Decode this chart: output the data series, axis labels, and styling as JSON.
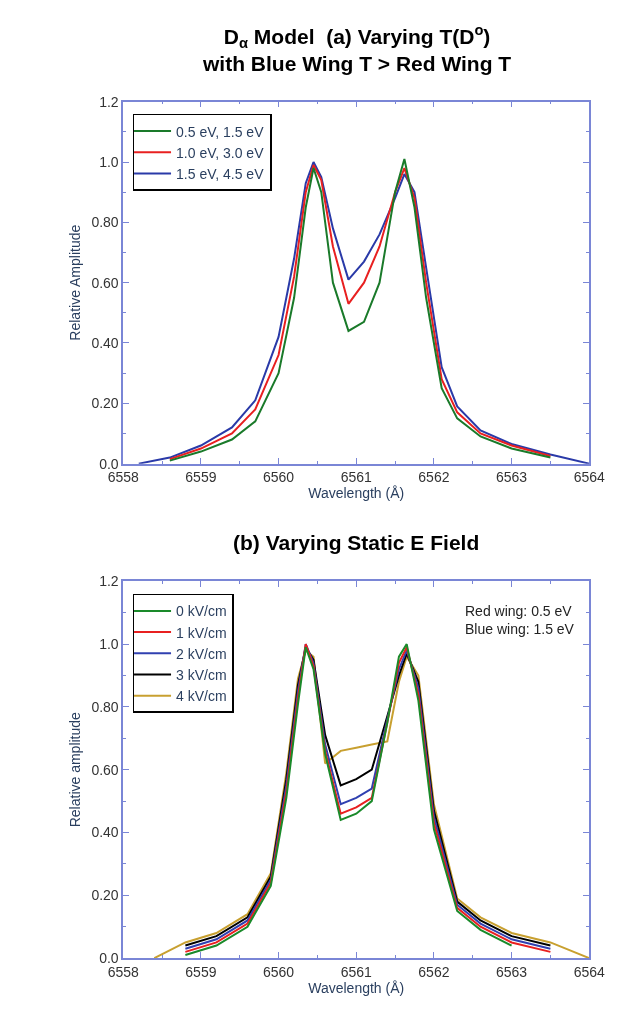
{
  "chart_data": [
    {
      "type": "line",
      "title": "D$_{α}$ Model  (a) Varying T(D$^{o}$)\nwith Blue Wing T > Red Wing T",
      "xlabel": "Wavelength (Å)",
      "ylabel": "Relative Amplitude",
      "xlim": [
        6558,
        6564
      ],
      "xticks": [
        6558,
        6559,
        6560,
        6561,
        6562,
        6563,
        6564
      ],
      "ylim": [
        0,
        1.2
      ],
      "yticks": [
        {
          "value": 0,
          "label": "0.0"
        },
        {
          "value": 0.2,
          "label": "0.20"
        },
        {
          "value": 0.4,
          "label": "0.40"
        },
        {
          "value": 0.6,
          "label": "0.60"
        },
        {
          "value": 0.8,
          "label": "0.80"
        },
        {
          "value": 1.0,
          "label": "1.0"
        },
        {
          "value": 1.2,
          "label": "1.2"
        }
      ],
      "x": [
        6558.2,
        6558.6,
        6559.0,
        6559.4,
        6559.7,
        6560.0,
        6560.2,
        6560.35,
        6560.45,
        6560.55,
        6560.7,
        6560.9,
        6561.1,
        6561.3,
        6561.5,
        6561.62,
        6561.75,
        6561.9,
        6562.1,
        6562.3,
        6562.6,
        6563.0,
        6563.5,
        6564.0
      ],
      "series": [
        {
          "name": "0.5 eV, 1.5 eV",
          "color": "#1a7a2a",
          "values": [
            null,
            0.01,
            0.04,
            0.08,
            0.14,
            0.3,
            0.55,
            0.85,
            0.98,
            0.9,
            0.6,
            0.44,
            0.47,
            0.6,
            0.9,
            1.01,
            0.85,
            0.55,
            0.25,
            0.15,
            0.09,
            0.05,
            0.02,
            null
          ]
        },
        {
          "name": "1.0 eV, 3.0 eV",
          "color": "#e82020",
          "values": [
            null,
            0.015,
            0.05,
            0.1,
            0.18,
            0.36,
            0.62,
            0.9,
            0.99,
            0.94,
            0.72,
            0.53,
            0.6,
            0.72,
            0.9,
            0.98,
            0.88,
            0.6,
            0.28,
            0.17,
            0.1,
            0.06,
            0.025,
            null
          ]
        },
        {
          "name": "1.5 eV, 4.5 eV",
          "color": "#2a3aa8",
          "values": [
            0.0,
            0.02,
            0.06,
            0.12,
            0.21,
            0.42,
            0.68,
            0.93,
            1.0,
            0.95,
            0.78,
            0.61,
            0.67,
            0.76,
            0.88,
            0.96,
            0.9,
            0.65,
            0.32,
            0.19,
            0.11,
            0.065,
            0.03,
            0.0
          ]
        }
      ],
      "legend": "top left",
      "grid": false,
      "marker": "none",
      "line_style": "solid"
    },
    {
      "type": "line",
      "title": "(b) Varying Static E Field",
      "xlabel": "Wavelength (Å)",
      "ylabel": "Relative amplitude",
      "annotations": [
        "Red wing: 0.5 eV\nBlue wing: 1.5 eV"
      ],
      "xlim": [
        6558,
        6564
      ],
      "xticks": [
        6558,
        6559,
        6560,
        6561,
        6562,
        6563,
        6564
      ],
      "ylim": [
        0,
        1.2
      ],
      "yticks": [
        {
          "value": 0,
          "label": "0.0"
        },
        {
          "value": 0.2,
          "label": "0.20"
        },
        {
          "value": 0.4,
          "label": "0.40"
        },
        {
          "value": 0.6,
          "label": "0.60"
        },
        {
          "value": 0.8,
          "label": "0.80"
        },
        {
          "value": 1.0,
          "label": "1.0"
        },
        {
          "value": 1.2,
          "label": "1.2"
        }
      ],
      "x": [
        6558.4,
        6558.8,
        6559.2,
        6559.6,
        6559.9,
        6560.1,
        6560.25,
        6560.35,
        6560.45,
        6560.6,
        6560.8,
        6561.0,
        6561.2,
        6561.4,
        6561.55,
        6561.65,
        6561.8,
        6562.0,
        6562.3,
        6562.6,
        6563.0,
        6563.5,
        6564.0
      ],
      "series": [
        {
          "name": "0 kV/cm",
          "color": "#1a8a2a",
          "values": [
            null,
            0.01,
            0.04,
            0.1,
            0.23,
            0.51,
            0.81,
            0.99,
            0.92,
            0.65,
            0.44,
            0.46,
            0.5,
            0.75,
            0.96,
            1.0,
            0.82,
            0.41,
            0.15,
            0.09,
            0.04,
            null,
            null
          ]
        },
        {
          "name": "1 kV/cm",
          "color": "#e82020",
          "values": [
            null,
            0.02,
            0.05,
            0.11,
            0.24,
            0.53,
            0.83,
            1.0,
            0.93,
            0.66,
            0.46,
            0.48,
            0.51,
            0.75,
            0.94,
            0.99,
            0.84,
            0.43,
            0.16,
            0.1,
            0.05,
            0.02,
            null
          ]
        },
        {
          "name": "2 kV/cm",
          "color": "#3040b0",
          "values": [
            null,
            0.03,
            0.06,
            0.12,
            0.25,
            0.55,
            0.85,
            1.0,
            0.94,
            0.68,
            0.49,
            0.51,
            0.54,
            0.76,
            0.92,
            0.98,
            0.86,
            0.45,
            0.17,
            0.11,
            0.06,
            0.03,
            null
          ]
        },
        {
          "name": "3 kV/cm",
          "color": "#000000",
          "values": [
            null,
            0.04,
            0.07,
            0.13,
            0.26,
            0.57,
            0.87,
            0.99,
            0.95,
            0.71,
            0.55,
            0.57,
            0.6,
            0.77,
            0.9,
            0.97,
            0.88,
            0.47,
            0.18,
            0.12,
            0.07,
            0.04,
            null
          ]
        },
        {
          "name": "4 kV/cm",
          "color": "#c8a030",
          "values": [
            0.0,
            0.05,
            0.08,
            0.14,
            0.27,
            0.59,
            0.89,
            0.98,
            0.96,
            0.62,
            0.66,
            0.67,
            0.68,
            0.69,
            0.88,
            0.96,
            0.9,
            0.49,
            0.19,
            0.13,
            0.08,
            0.05,
            0.0
          ]
        }
      ],
      "legend": "top left",
      "grid": false,
      "marker": "none",
      "line_style": "solid"
    }
  ]
}
